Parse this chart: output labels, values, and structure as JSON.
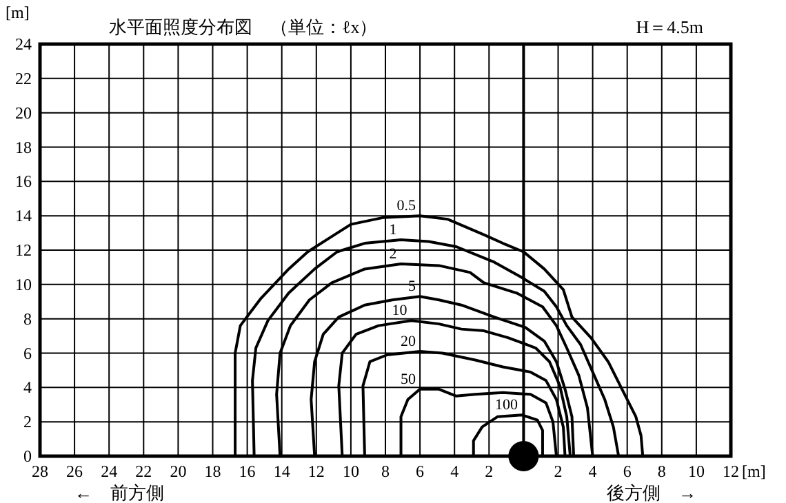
{
  "chart_data": {
    "type": "line",
    "title": "水平面照度分布図　（単位：ℓx）",
    "subtitle": "H＝4.5m",
    "ylabel": "[m]",
    "xlabel": "[m]",
    "annotations": [
      "←　前方側",
      "後方側　→"
    ],
    "xlim": [
      -28,
      12
    ],
    "ylim": [
      0,
      24
    ],
    "xticks": [
      {
        "value": -28,
        "label": "28"
      },
      {
        "value": -26,
        "label": "26"
      },
      {
        "value": -24,
        "label": "24"
      },
      {
        "value": -22,
        "label": "22"
      },
      {
        "value": -20,
        "label": "20"
      },
      {
        "value": -18,
        "label": "18"
      },
      {
        "value": -16,
        "label": "16"
      },
      {
        "value": -14,
        "label": "14"
      },
      {
        "value": -12,
        "label": "12"
      },
      {
        "value": -10,
        "label": "10"
      },
      {
        "value": -8,
        "label": "8"
      },
      {
        "value": -6,
        "label": "6"
      },
      {
        "value": -4,
        "label": "4"
      },
      {
        "value": -2,
        "label": "2"
      },
      {
        "value": 0,
        "label": null
      },
      2,
      4,
      6,
      8,
      10,
      12
    ],
    "yticks": [
      0,
      2,
      4,
      6,
      8,
      10,
      12,
      14,
      16,
      18,
      20,
      22,
      24
    ],
    "grid": true,
    "legend": false,
    "marker": "none",
    "line_style": "solid",
    "ref_lines": [
      {
        "axis": "x",
        "value": 0,
        "label": null,
        "color": "#000000"
      }
    ],
    "series": [
      {
        "name": "0.5",
        "color": "#000000",
        "x": [
          -16.7,
          -16.7,
          -16.4,
          -15.2,
          -13.6,
          -12.5,
          -11.1,
          -10,
          -8.1,
          -6,
          -4.4,
          -2.3,
          -1.2,
          0,
          1.2,
          2.3,
          2.8,
          3.9,
          4.9,
          5.7,
          6.5,
          6.8,
          6.9
        ],
        "values": [
          0,
          6,
          7.6,
          9.2,
          10.9,
          11.9,
          12.8,
          13.5,
          13.9,
          14,
          13.8,
          12.9,
          12.4,
          11.9,
          10.9,
          9.7,
          8.1,
          6.9,
          5.5,
          3.9,
          2.3,
          1.2,
          0
        ]
      },
      {
        "name": "1",
        "color": "#000000",
        "x": [
          -15.6,
          -15.7,
          -15.5,
          -14.8,
          -13.6,
          -12.1,
          -10.8,
          -9.2,
          -7.1,
          -5.5,
          -3.9,
          -1.7,
          -0.1,
          1.2,
          1.9,
          2.5,
          3.3,
          4,
          4.7,
          5.2,
          5.5
        ],
        "values": [
          0,
          4.4,
          6.3,
          7.9,
          9.5,
          10.9,
          11.9,
          12.4,
          12.6,
          12.5,
          12.2,
          11.3,
          10.4,
          9.6,
          8.7,
          7.6,
          6.5,
          4.9,
          3.3,
          1.7,
          0
        ]
      },
      {
        "name": "2",
        "color": "#000000",
        "x": [
          -14.1,
          -14.3,
          -14.1,
          -13.5,
          -12.4,
          -11.1,
          -9.2,
          -7.1,
          -4.9,
          -3.1,
          -2.3,
          -0.4,
          1.1,
          1.9,
          2.5,
          3.2,
          3.7,
          4
        ],
        "values": [
          0,
          3.6,
          6,
          7.6,
          9.1,
          10.1,
          10.9,
          11.2,
          11.1,
          10.7,
          10.1,
          9.5,
          8.7,
          7.6,
          6.3,
          4.7,
          2.8,
          0
        ]
      },
      {
        "name": "5",
        "color": "#000000",
        "x": [
          -12.1,
          -12.3,
          -12.1,
          -11.6,
          -10.7,
          -9.2,
          -7.6,
          -6,
          -4.9,
          -3.6,
          -1.7,
          0.1,
          1.2,
          1.9,
          2.4,
          2.8,
          2.9
        ],
        "values": [
          0,
          3.3,
          5.5,
          7.1,
          8.1,
          8.8,
          9.1,
          9.3,
          9.1,
          8.8,
          8.1,
          7.5,
          6.7,
          5.5,
          3.9,
          2.3,
          0
        ]
      },
      {
        "name": "10",
        "color": "#000000",
        "x": [
          -10.5,
          -10.7,
          -10.5,
          -9.7,
          -8.4,
          -6.5,
          -4.9,
          -3.6,
          -2.3,
          -0.9,
          0.7,
          1.5,
          2.1,
          2.5,
          2.7
        ],
        "values": [
          0,
          4.1,
          6,
          7.1,
          7.6,
          7.9,
          7.7,
          7.4,
          7.3,
          6.9,
          6.3,
          5.5,
          4.1,
          2.3,
          0
        ]
      },
      {
        "name": "20",
        "color": "#000000",
        "x": [
          -9.2,
          -9.3,
          -8.9,
          -7.9,
          -6,
          -4.7,
          -2.8,
          -1.2,
          0.4,
          1.3,
          1.9,
          2.3,
          2.4
        ],
        "values": [
          0,
          4.1,
          5.5,
          5.9,
          6.1,
          6,
          5.6,
          5.2,
          4.9,
          4.4,
          3.3,
          1.7,
          0
        ]
      },
      {
        "name": "50",
        "color": "#000000",
        "x": [
          -7.1,
          -7.1,
          -6.7,
          -6,
          -4.9,
          -3.9,
          -2.8,
          -1.2,
          0.4,
          1.3,
          1.7,
          1.9
        ],
        "values": [
          0,
          2.3,
          3.3,
          3.9,
          3.9,
          3.5,
          3.6,
          3.7,
          3.6,
          3.1,
          2,
          0
        ]
      },
      {
        "name": "100",
        "color": "#000000",
        "x": [
          -2.9,
          -2.9,
          -2.4,
          -1.5,
          -0.1,
          0.8,
          1.1,
          1.1
        ],
        "values": [
          0,
          0.9,
          1.7,
          2.3,
          2.4,
          2.1,
          1.5,
          0
        ]
      }
    ]
  }
}
